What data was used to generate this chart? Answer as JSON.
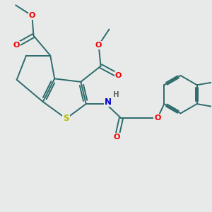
{
  "bg_color": "#e8eaea",
  "bond_color": "#2d6b6b",
  "bond_width": 1.4,
  "atom_colors": {
    "O": "#ee0000",
    "S": "#bbbb00",
    "N": "#0000cc",
    "H": "#666666"
  },
  "figsize": [
    3.0,
    3.0
  ],
  "dpi": 100,
  "xlim": [
    0,
    10
  ],
  "ylim": [
    0,
    10
  ]
}
